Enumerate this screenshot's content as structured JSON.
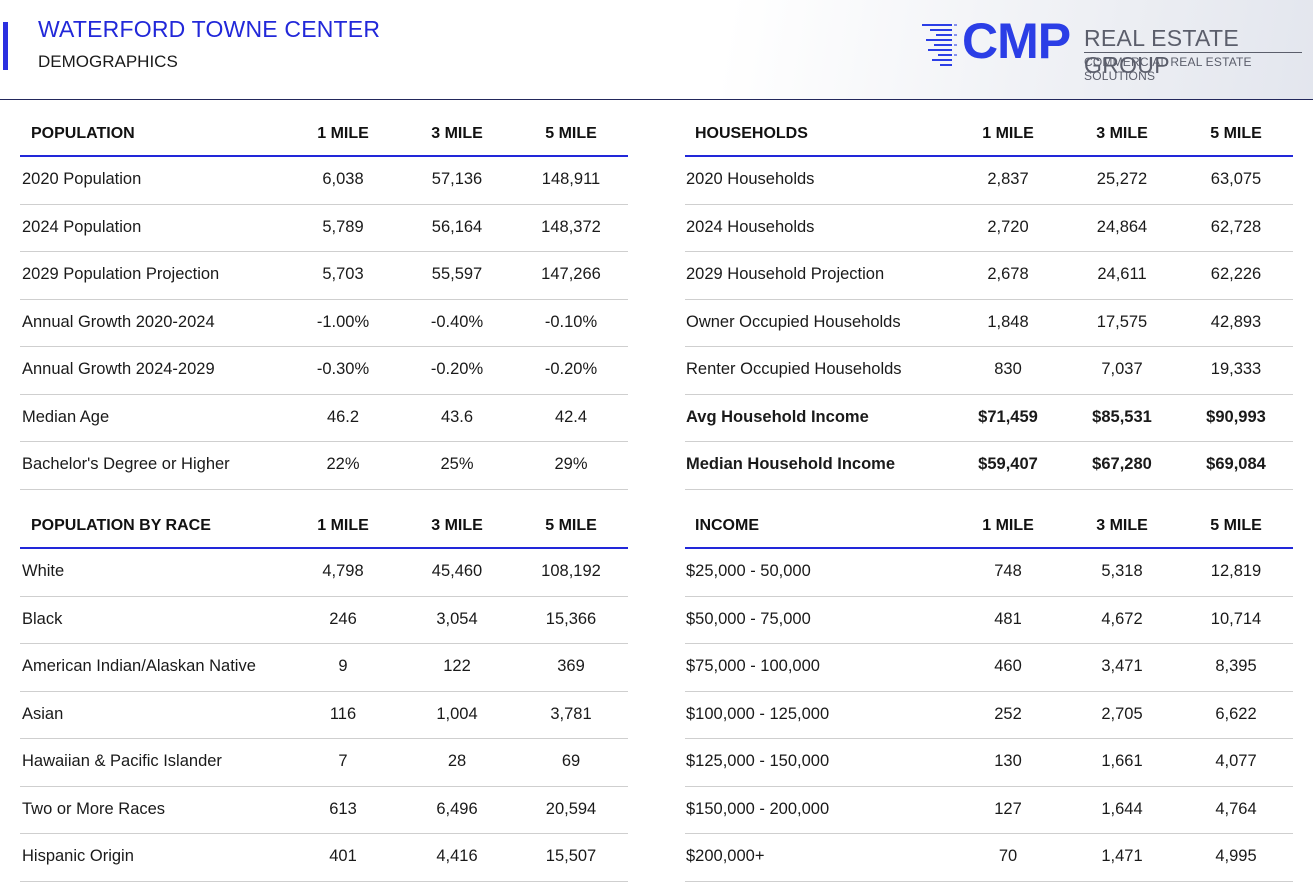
{
  "header": {
    "title": "WATERFORD TOWNE CENTER",
    "subtitle": "DEMOGRAPHICS",
    "logo": {
      "mark": "CMP",
      "name": "REAL ESTATE GROUP",
      "tagline": "COMMERCIAL REAL ESTATE SOLUTIONS",
      "brand_color": "#2b3ee6"
    }
  },
  "columns": [
    "1 MILE",
    "3 MILE",
    "5 MILE"
  ],
  "population": {
    "heading": "POPULATION",
    "rows": [
      {
        "label": "2020 Population",
        "values": [
          "6,038",
          "57,136",
          "148,911"
        ]
      },
      {
        "label": "2024 Population",
        "values": [
          "5,789",
          "56,164",
          "148,372"
        ]
      },
      {
        "label": "2029 Population Projection",
        "values": [
          "5,703",
          "55,597",
          "147,266"
        ]
      },
      {
        "label": "Annual Growth 2020-2024",
        "values": [
          "-1.00%",
          "-0.40%",
          "-0.10%"
        ]
      },
      {
        "label": "Annual Growth 2024-2029",
        "values": [
          "-0.30%",
          "-0.20%",
          "-0.20%"
        ]
      },
      {
        "label": "Median Age",
        "values": [
          "46.2",
          "43.6",
          "42.4"
        ]
      },
      {
        "label": "Bachelor's Degree or Higher",
        "values": [
          "22%",
          "25%",
          "29%"
        ]
      }
    ]
  },
  "households": {
    "heading": "HOUSEHOLDS",
    "rows": [
      {
        "label": "2020 Households",
        "values": [
          "2,837",
          "25,272",
          "63,075"
        ]
      },
      {
        "label": "2024 Households",
        "values": [
          "2,720",
          "24,864",
          "62,728"
        ]
      },
      {
        "label": "2029 Household Projection",
        "values": [
          "2,678",
          "24,611",
          "62,226"
        ]
      },
      {
        "label": "Owner Occupied Households",
        "values": [
          "1,848",
          "17,575",
          "42,893"
        ]
      },
      {
        "label": "Renter Occupied Households",
        "values": [
          "830",
          "7,037",
          "19,333"
        ]
      },
      {
        "label": "Avg Household Income",
        "values": [
          "$71,459",
          "$85,531",
          "$90,993"
        ],
        "bold": true
      },
      {
        "label": "Median Household Income",
        "values": [
          "$59,407",
          "$67,280",
          "$69,084"
        ],
        "bold": true
      }
    ]
  },
  "race": {
    "heading": "POPULATION BY RACE",
    "rows": [
      {
        "label": "White",
        "values": [
          "4,798",
          "45,460",
          "108,192"
        ]
      },
      {
        "label": "Black",
        "values": [
          "246",
          "3,054",
          "15,366"
        ]
      },
      {
        "label": "American Indian/Alaskan Native",
        "values": [
          "9",
          "122",
          "369"
        ]
      },
      {
        "label": "Asian",
        "values": [
          "116",
          "1,004",
          "3,781"
        ]
      },
      {
        "label": "Hawaiian & Pacific Islander",
        "values": [
          "7",
          "28",
          "69"
        ]
      },
      {
        "label": "Two or More Races",
        "values": [
          "613",
          "6,496",
          "20,594"
        ]
      },
      {
        "label": "Hispanic Origin",
        "values": [
          "401",
          "4,416",
          "15,507"
        ]
      }
    ]
  },
  "income": {
    "heading": "INCOME",
    "rows": [
      {
        "label": "$25,000 - 50,000",
        "values": [
          "748",
          "5,318",
          "12,819"
        ]
      },
      {
        "label": "$50,000 - 75,000",
        "values": [
          "481",
          "4,672",
          "10,714"
        ]
      },
      {
        "label": "$75,000 - 100,000",
        "values": [
          "460",
          "3,471",
          "8,395"
        ]
      },
      {
        "label": "$100,000 - 125,000",
        "values": [
          "252",
          "2,705",
          "6,622"
        ]
      },
      {
        "label": "$125,000 - 150,000",
        "values": [
          "130",
          "1,661",
          "4,077"
        ]
      },
      {
        "label": "$150,000 - 200,000",
        "values": [
          "127",
          "1,644",
          "4,764"
        ]
      },
      {
        "label": "$200,000+",
        "values": [
          "70",
          "1,471",
          "4,995"
        ]
      }
    ]
  }
}
